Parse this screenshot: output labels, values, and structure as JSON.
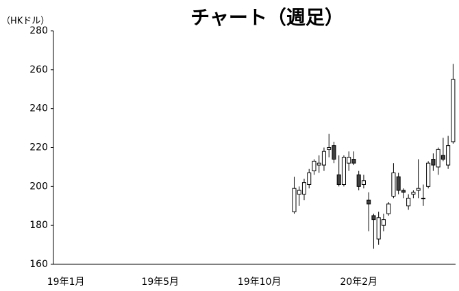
{
  "chart_data": {
    "type": "candlestick",
    "title": "チャート（週足）",
    "y_label": "（HKドル）",
    "categories": [
      null,
      null,
      "19年1月",
      null,
      null,
      null,
      null,
      null,
      null,
      null,
      null,
      null,
      null,
      null,
      null,
      null,
      null,
      null,
      null,
      null,
      null,
      "19年5月",
      null,
      null,
      null,
      null,
      null,
      null,
      null,
      null,
      null,
      null,
      null,
      null,
      null,
      null,
      null,
      null,
      null,
      null,
      null,
      "19年10月",
      null,
      null,
      null,
      null,
      null,
      null,
      null,
      null,
      null,
      null,
      null,
      null,
      null,
      null,
      null,
      null,
      null,
      null,
      null,
      "20年2月",
      null,
      null,
      null,
      null,
      null,
      null,
      null,
      null,
      null,
      null,
      null,
      null,
      null,
      null,
      null,
      null,
      null,
      null,
      null
    ],
    "open": [
      null,
      null,
      null,
      null,
      null,
      null,
      null,
      null,
      null,
      null,
      null,
      null,
      null,
      null,
      null,
      null,
      null,
      null,
      null,
      null,
      null,
      null,
      null,
      null,
      null,
      null,
      null,
      null,
      null,
      null,
      null,
      null,
      null,
      null,
      null,
      null,
      null,
      null,
      null,
      null,
      null,
      null,
      null,
      null,
      null,
      null,
      null,
      null,
      187,
      196,
      196,
      201,
      208,
      211,
      211,
      219,
      221,
      206,
      201,
      212,
      214,
      206,
      201,
      193,
      185,
      173,
      180,
      186,
      195,
      205,
      198,
      190,
      196,
      198,
      194,
      200,
      214,
      210,
      216,
      211,
      223
    ],
    "high": [
      null,
      null,
      null,
      null,
      null,
      null,
      null,
      null,
      null,
      null,
      null,
      null,
      null,
      null,
      null,
      null,
      null,
      null,
      null,
      null,
      null,
      null,
      null,
      null,
      null,
      null,
      null,
      null,
      null,
      null,
      null,
      null,
      null,
      null,
      null,
      null,
      null,
      null,
      null,
      null,
      null,
      null,
      null,
      null,
      null,
      null,
      null,
      null,
      205,
      200,
      204,
      209,
      214,
      216,
      220,
      227,
      223,
      216,
      216,
      218,
      218,
      208,
      206,
      197,
      186,
      187,
      186,
      192,
      212,
      207,
      199,
      196,
      198,
      214,
      201,
      213,
      217,
      220,
      225,
      226,
      263
    ],
    "low": [
      null,
      null,
      null,
      null,
      null,
      null,
      null,
      null,
      null,
      null,
      null,
      null,
      null,
      null,
      null,
      null,
      null,
      null,
      null,
      null,
      null,
      null,
      null,
      null,
      null,
      null,
      null,
      null,
      null,
      null,
      null,
      null,
      null,
      null,
      null,
      null,
      null,
      null,
      null,
      null,
      null,
      null,
      null,
      null,
      null,
      null,
      null,
      null,
      186,
      190,
      193,
      199,
      206,
      207,
      208,
      215,
      212,
      200,
      200,
      208,
      211,
      198,
      199,
      177,
      168,
      170,
      177,
      185,
      194,
      196,
      194,
      188,
      194,
      194,
      190,
      199,
      208,
      206,
      213,
      209,
      222
    ],
    "close": [
      null,
      null,
      null,
      null,
      null,
      null,
      null,
      null,
      null,
      null,
      null,
      null,
      null,
      null,
      null,
      null,
      null,
      null,
      null,
      null,
      null,
      null,
      null,
      null,
      null,
      null,
      null,
      null,
      null,
      null,
      null,
      null,
      null,
      null,
      null,
      null,
      null,
      null,
      null,
      null,
      null,
      null,
      null,
      null,
      null,
      null,
      null,
      null,
      199,
      198,
      202,
      207,
      213,
      212,
      218,
      220,
      214,
      201,
      215,
      215,
      212,
      200,
      203,
      191,
      183,
      184,
      183,
      191,
      207,
      198,
      197,
      194,
      197,
      199,
      194,
      212,
      211,
      219,
      214,
      221,
      255
    ],
    "up_color": "#ffffff",
    "down_color": "#404040",
    "ylim": [
      160,
      280
    ],
    "yticks": [
      160,
      180,
      200,
      220,
      240,
      260,
      280
    ]
  }
}
